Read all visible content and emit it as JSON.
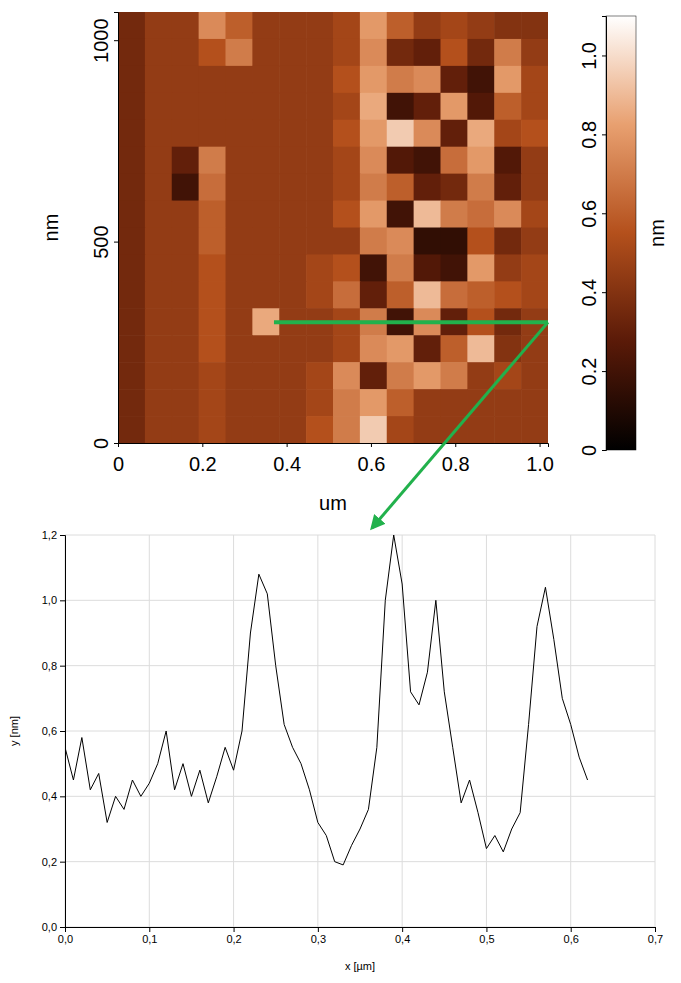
{
  "chart_data": [
    {
      "type": "heatmap",
      "x_label": "um",
      "y_label": "nm",
      "xlim": [
        0,
        1.02
      ],
      "ylim": [
        0,
        1070
      ],
      "xticks": [
        0,
        0.2,
        0.4,
        0.6,
        0.8,
        {
          "value": 1,
          "label": "1.0"
        }
      ],
      "yticks": [
        0,
        500,
        1000
      ],
      "cells": [
        [
          0.35,
          0.45,
          0.45,
          0.75,
          0.6,
          0.45,
          0.45,
          0.45,
          0.5,
          0.8,
          0.6,
          0.45,
          0.5,
          0.45,
          0.4,
          0.4
        ],
        [
          0.35,
          0.45,
          0.45,
          0.55,
          0.7,
          0.45,
          0.45,
          0.45,
          0.5,
          0.75,
          0.35,
          0.3,
          0.55,
          0.35,
          0.7,
          0.45
        ],
        [
          0.35,
          0.45,
          0.45,
          0.45,
          0.45,
          0.45,
          0.45,
          0.45,
          0.55,
          0.8,
          0.7,
          0.75,
          0.3,
          0.2,
          0.8,
          0.5
        ],
        [
          0.35,
          0.45,
          0.45,
          0.45,
          0.45,
          0.45,
          0.45,
          0.45,
          0.5,
          0.85,
          0.2,
          0.3,
          0.8,
          0.25,
          0.6,
          0.5
        ],
        [
          0.35,
          0.45,
          0.45,
          0.45,
          0.45,
          0.45,
          0.45,
          0.45,
          0.55,
          0.8,
          0.95,
          0.75,
          0.3,
          0.85,
          0.5,
          0.55
        ],
        [
          0.35,
          0.45,
          0.3,
          0.7,
          0.45,
          0.45,
          0.45,
          0.45,
          0.5,
          0.75,
          0.25,
          0.2,
          0.65,
          0.8,
          0.25,
          0.45
        ],
        [
          0.35,
          0.45,
          0.2,
          0.65,
          0.45,
          0.45,
          0.45,
          0.45,
          0.5,
          0.7,
          0.6,
          0.3,
          0.35,
          0.7,
          0.3,
          0.45
        ],
        [
          0.35,
          0.45,
          0.45,
          0.6,
          0.45,
          0.45,
          0.45,
          0.45,
          0.55,
          0.8,
          0.2,
          0.9,
          0.7,
          0.65,
          0.75,
          0.5
        ],
        [
          0.35,
          0.45,
          0.45,
          0.6,
          0.45,
          0.45,
          0.45,
          0.45,
          0.45,
          0.7,
          0.75,
          0.15,
          0.15,
          0.55,
          0.35,
          0.45
        ],
        [
          0.35,
          0.45,
          0.45,
          0.55,
          0.45,
          0.45,
          0.45,
          0.5,
          0.55,
          0.2,
          0.7,
          0.25,
          0.2,
          0.8,
          0.45,
          0.5
        ],
        [
          0.35,
          0.45,
          0.45,
          0.55,
          0.45,
          0.45,
          0.45,
          0.5,
          0.65,
          0.3,
          0.6,
          0.9,
          0.65,
          0.6,
          0.55,
          0.5
        ],
        [
          0.35,
          0.45,
          0.45,
          0.55,
          0.45,
          0.85,
          0.45,
          0.45,
          0.5,
          0.7,
          0.2,
          0.75,
          0.3,
          0.55,
          0.35,
          0.45
        ],
        [
          0.35,
          0.45,
          0.45,
          0.55,
          0.45,
          0.45,
          0.45,
          0.45,
          0.5,
          0.75,
          0.8,
          0.3,
          0.6,
          0.9,
          0.4,
          0.45
        ],
        [
          0.35,
          0.45,
          0.45,
          0.5,
          0.45,
          0.45,
          0.45,
          0.5,
          0.75,
          0.3,
          0.7,
          0.8,
          0.7,
          0.45,
          0.5,
          0.45
        ],
        [
          0.35,
          0.45,
          0.45,
          0.5,
          0.45,
          0.45,
          0.45,
          0.5,
          0.7,
          0.8,
          0.6,
          0.45,
          0.45,
          0.45,
          0.45,
          0.45
        ],
        [
          0.35,
          0.45,
          0.45,
          0.5,
          0.45,
          0.45,
          0.45,
          0.55,
          0.7,
          0.95,
          0.5,
          0.45,
          0.45,
          0.45,
          0.45,
          0.45
        ]
      ],
      "colorbar": {
        "range": [
          0,
          1.1
        ],
        "ticks": [
          0,
          0.2,
          0.4,
          0.6,
          0.8,
          {
            "value": 1,
            "label": "1.0"
          }
        ],
        "label": "nm"
      },
      "profile_line": {
        "x": [
          0.37,
          1.02
        ],
        "y": [
          300,
          300
        ]
      }
    },
    {
      "type": "line",
      "x_label": "x [µm]",
      "y_label": "y [nm]",
      "color": "#000000",
      "grid": true,
      "xlim": [
        0,
        0.7
      ],
      "ylim": [
        0,
        1.2
      ],
      "xticks": [
        {
          "value": 0,
          "label": "0,0"
        },
        {
          "value": 0.1,
          "label": "0,1"
        },
        {
          "value": 0.2,
          "label": "0,2"
        },
        {
          "value": 0.3,
          "label": "0,3"
        },
        {
          "value": 0.4,
          "label": "0,4"
        },
        {
          "value": 0.5,
          "label": "0,5"
        },
        {
          "value": 0.6,
          "label": "0,6"
        },
        {
          "value": 0.7,
          "label": "0,7"
        }
      ],
      "yticks": [
        {
          "value": 0,
          "label": "0,0"
        },
        {
          "value": 0.2,
          "label": "0,2"
        },
        {
          "value": 0.4,
          "label": "0,4"
        },
        {
          "value": 0.6,
          "label": "0,6"
        },
        {
          "value": 0.8,
          "label": "0,8"
        },
        {
          "value": 1,
          "label": "1,0"
        },
        {
          "value": 1.2,
          "label": "1,2"
        }
      ],
      "x": [
        0.0,
        0.01,
        0.02,
        0.03,
        0.04,
        0.05,
        0.06,
        0.07,
        0.08,
        0.09,
        0.1,
        0.11,
        0.12,
        0.13,
        0.14,
        0.15,
        0.16,
        0.17,
        0.18,
        0.19,
        0.2,
        0.21,
        0.22,
        0.23,
        0.24,
        0.25,
        0.26,
        0.27,
        0.28,
        0.29,
        0.3,
        0.31,
        0.32,
        0.33,
        0.34,
        0.35,
        0.36,
        0.37,
        0.38,
        0.39,
        0.4,
        0.41,
        0.42,
        0.43,
        0.44,
        0.45,
        0.46,
        0.47,
        0.48,
        0.49,
        0.5,
        0.51,
        0.52,
        0.53,
        0.54,
        0.55,
        0.56,
        0.57,
        0.58,
        0.59,
        0.6,
        0.61,
        0.62
      ],
      "values": [
        0.55,
        0.45,
        0.58,
        0.42,
        0.47,
        0.32,
        0.4,
        0.36,
        0.45,
        0.4,
        0.44,
        0.5,
        0.6,
        0.42,
        0.5,
        0.4,
        0.48,
        0.38,
        0.46,
        0.55,
        0.48,
        0.6,
        0.9,
        1.08,
        1.02,
        0.8,
        0.62,
        0.55,
        0.5,
        0.42,
        0.32,
        0.28,
        0.2,
        0.19,
        0.25,
        0.3,
        0.36,
        0.55,
        1.0,
        1.2,
        1.05,
        0.72,
        0.68,
        0.78,
        1.0,
        0.72,
        0.55,
        0.38,
        0.45,
        0.35,
        0.24,
        0.28,
        0.23,
        0.3,
        0.35,
        0.62,
        0.92,
        1.04,
        0.88,
        0.7,
        0.62,
        0.52,
        0.45
      ]
    }
  ]
}
